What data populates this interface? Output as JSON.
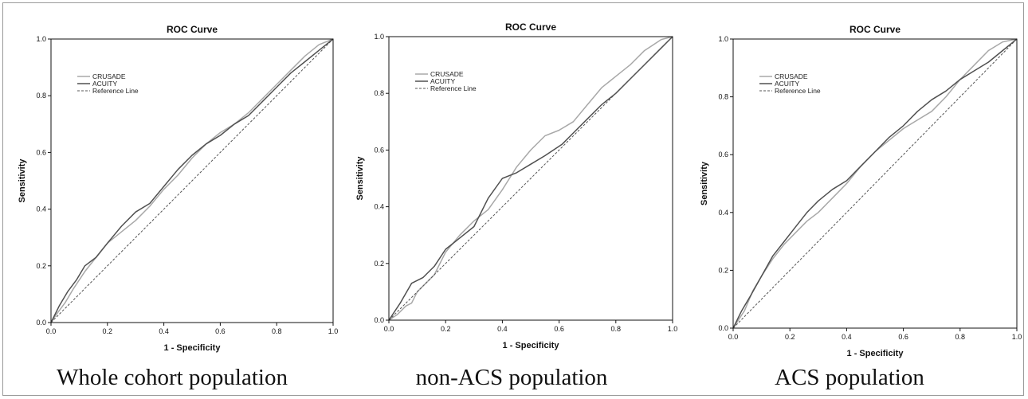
{
  "chart_data": [
    {
      "type": "line",
      "title": "ROC Curve",
      "caption": "Whole cohort population",
      "xlabel": "1 - Specificity",
      "ylabel": "Sensitivity",
      "xlim": [
        0,
        1
      ],
      "ylim": [
        0,
        1
      ],
      "xticks": [
        "0.0",
        "0.2",
        "0.4",
        "0.6",
        "0.8",
        "1.0"
      ],
      "yticks": [
        "0.0",
        "0.2",
        "0.4",
        "0.6",
        "0.8",
        "1.0"
      ],
      "legend_position": "top-left",
      "series": [
        {
          "name": "CRUSADE",
          "color": "#a8a8a8",
          "x": [
            0,
            0.02,
            0.05,
            0.08,
            0.12,
            0.16,
            0.2,
            0.25,
            0.3,
            0.35,
            0.4,
            0.45,
            0.5,
            0.55,
            0.6,
            0.65,
            0.7,
            0.75,
            0.8,
            0.85,
            0.9,
            0.95,
            1.0
          ],
          "y": [
            0,
            0.03,
            0.07,
            0.12,
            0.18,
            0.23,
            0.28,
            0.32,
            0.36,
            0.41,
            0.47,
            0.52,
            0.58,
            0.63,
            0.67,
            0.7,
            0.74,
            0.79,
            0.84,
            0.89,
            0.94,
            0.98,
            1.0
          ]
        },
        {
          "name": "ACUITY",
          "color": "#505050",
          "x": [
            0,
            0.03,
            0.06,
            0.09,
            0.12,
            0.16,
            0.2,
            0.25,
            0.3,
            0.35,
            0.4,
            0.45,
            0.5,
            0.55,
            0.6,
            0.65,
            0.7,
            0.75,
            0.8,
            0.85,
            0.9,
            0.95,
            1.0
          ],
          "y": [
            0,
            0.06,
            0.11,
            0.15,
            0.2,
            0.23,
            0.28,
            0.34,
            0.39,
            0.42,
            0.48,
            0.54,
            0.59,
            0.63,
            0.66,
            0.7,
            0.73,
            0.78,
            0.83,
            0.88,
            0.92,
            0.96,
            1.0
          ]
        },
        {
          "name": "Reference Line",
          "color": "#555555",
          "dashed": true,
          "x": [
            0,
            1
          ],
          "y": [
            0,
            1
          ]
        }
      ]
    },
    {
      "type": "line",
      "title": "ROC Curve",
      "caption": "non-ACS population",
      "xlabel": "1 - Specificity",
      "ylabel": "Sensitivity",
      "xlim": [
        0,
        1
      ],
      "ylim": [
        0,
        1
      ],
      "xticks": [
        "0.0",
        "0.2",
        "0.4",
        "0.6",
        "0.8",
        "1.0"
      ],
      "yticks": [
        "0.0",
        "0.2",
        "0.4",
        "0.6",
        "0.8",
        "1.0"
      ],
      "legend_position": "top-left",
      "series": [
        {
          "name": "CRUSADE",
          "color": "#a8a8a8",
          "x": [
            0,
            0.03,
            0.06,
            0.08,
            0.1,
            0.13,
            0.16,
            0.2,
            0.25,
            0.3,
            0.35,
            0.4,
            0.45,
            0.5,
            0.55,
            0.6,
            0.65,
            0.7,
            0.75,
            0.8,
            0.85,
            0.9,
            0.93,
            0.96,
            1.0
          ],
          "y": [
            0,
            0.02,
            0.05,
            0.06,
            0.1,
            0.13,
            0.16,
            0.24,
            0.3,
            0.35,
            0.39,
            0.46,
            0.54,
            0.6,
            0.65,
            0.67,
            0.7,
            0.76,
            0.82,
            0.86,
            0.9,
            0.95,
            0.97,
            0.99,
            1.0
          ]
        },
        {
          "name": "ACUITY",
          "color": "#505050",
          "x": [
            0,
            0.04,
            0.08,
            0.12,
            0.16,
            0.2,
            0.25,
            0.3,
            0.35,
            0.4,
            0.45,
            0.5,
            0.55,
            0.61,
            0.65,
            0.7,
            0.75,
            0.8,
            0.85,
            0.9,
            0.95,
            1.0
          ],
          "y": [
            0,
            0.06,
            0.13,
            0.15,
            0.19,
            0.25,
            0.29,
            0.33,
            0.43,
            0.5,
            0.52,
            0.55,
            0.58,
            0.62,
            0.66,
            0.71,
            0.76,
            0.8,
            0.85,
            0.9,
            0.95,
            1.0
          ]
        },
        {
          "name": "Reference Line",
          "color": "#555555",
          "dashed": true,
          "x": [
            0,
            1
          ],
          "y": [
            0,
            1
          ]
        }
      ]
    },
    {
      "type": "line",
      "title": "ROC Curve",
      "caption": "ACS population",
      "xlabel": "1 - Specificity",
      "ylabel": "Sensitivity",
      "xlim": [
        0,
        1
      ],
      "ylim": [
        0,
        1
      ],
      "xticks": [
        "0.0",
        "0.2",
        "0.4",
        "0.6",
        "0.8",
        "1.0"
      ],
      "yticks": [
        "0.0",
        "0.2",
        "0.4",
        "0.6",
        "0.8",
        "1.0"
      ],
      "legend_position": "top-left",
      "series": [
        {
          "name": "CRUSADE",
          "color": "#a8a8a8",
          "x": [
            0,
            0.02,
            0.04,
            0.07,
            0.1,
            0.14,
            0.18,
            0.22,
            0.26,
            0.3,
            0.35,
            0.4,
            0.45,
            0.5,
            0.55,
            0.6,
            0.65,
            0.7,
            0.75,
            0.8,
            0.85,
            0.9,
            0.95,
            1.0
          ],
          "y": [
            0,
            0.03,
            0.06,
            0.13,
            0.18,
            0.24,
            0.29,
            0.33,
            0.37,
            0.4,
            0.45,
            0.5,
            0.56,
            0.61,
            0.65,
            0.69,
            0.72,
            0.75,
            0.8,
            0.86,
            0.91,
            0.96,
            0.99,
            1.0
          ]
        },
        {
          "name": "ACUITY",
          "color": "#505050",
          "x": [
            0,
            0.03,
            0.06,
            0.1,
            0.14,
            0.18,
            0.22,
            0.26,
            0.3,
            0.35,
            0.4,
            0.45,
            0.5,
            0.55,
            0.6,
            0.65,
            0.7,
            0.75,
            0.8,
            0.85,
            0.9,
            0.95,
            1.0
          ],
          "y": [
            0,
            0.06,
            0.11,
            0.18,
            0.25,
            0.3,
            0.35,
            0.4,
            0.44,
            0.48,
            0.51,
            0.56,
            0.61,
            0.66,
            0.7,
            0.75,
            0.79,
            0.82,
            0.86,
            0.89,
            0.92,
            0.96,
            1.0
          ]
        },
        {
          "name": "Reference Line",
          "color": "#555555",
          "dashed": true,
          "x": [
            0,
            1
          ],
          "y": [
            0,
            1
          ]
        }
      ]
    }
  ]
}
